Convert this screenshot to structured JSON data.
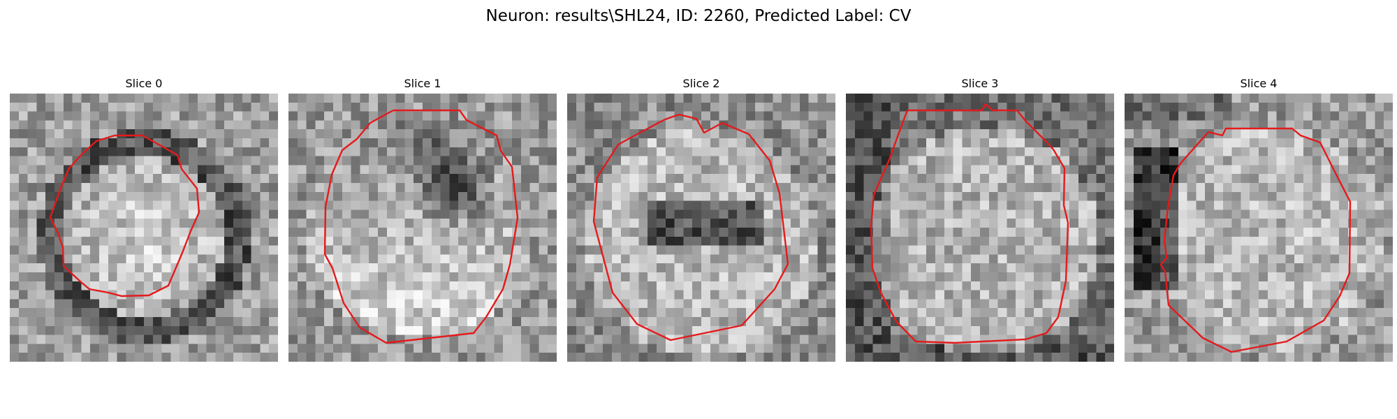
{
  "title": "Neuron: results\\SHL24, ID: 2260, Predicted Label: CV",
  "colors": {
    "background": "#ffffff",
    "contour": "#e41a1c",
    "grayscale_min": "#000000",
    "grayscale_max": "#ffffff"
  },
  "slices": [
    {
      "label": "Slice 0",
      "texture": {
        "seed": 11,
        "brightness": "bright ring inside dark boundary"
      }
    },
    {
      "label": "Slice 1",
      "texture": {
        "seed": 23,
        "brightness": "bright lower interior, dark upper-right"
      }
    },
    {
      "label": "Slice 2",
      "texture": {
        "seed": 37,
        "brightness": "bright interior with dark central band"
      }
    },
    {
      "label": "Slice 3",
      "texture": {
        "seed": 53,
        "brightness": "mottled bright interior, dark corners"
      }
    },
    {
      "label": "Slice 4",
      "texture": {
        "seed": 71,
        "brightness": "bright interior, dark left edge"
      }
    }
  ]
}
